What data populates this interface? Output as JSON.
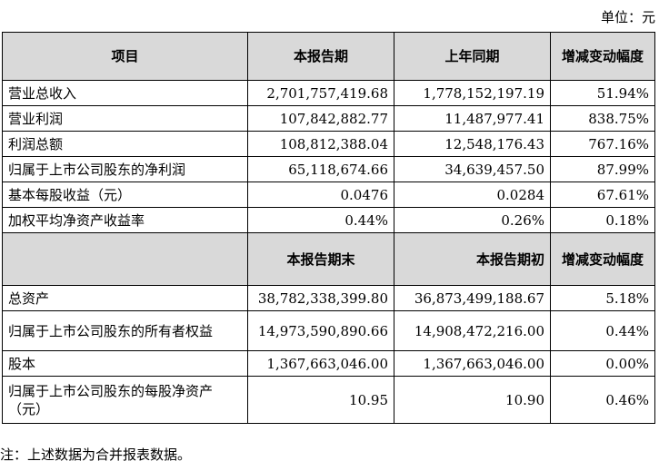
{
  "unit_label": "单位：元",
  "header1": {
    "item": "项目",
    "current": "本报告期",
    "prior": "上年同期",
    "change": "增减变动幅度"
  },
  "rows1": [
    {
      "label": "营业总收入",
      "current": "2,701,757,419.68",
      "prior": "1,778,152,197.19",
      "change": "51.94%"
    },
    {
      "label": "营业利润",
      "current": "107,842,882.77",
      "prior": "11,487,977.41",
      "change": "838.75%"
    },
    {
      "label": "利润总额",
      "current": "108,812,388.04",
      "prior": "12,548,176.43",
      "change": "767.16%"
    },
    {
      "label": "归属于上市公司股东的净利润",
      "current": "65,118,674.66",
      "prior": "34,639,457.50",
      "change": "87.99%"
    },
    {
      "label": "基本每股收益（元）",
      "current": "0.0476",
      "prior": "0.0284",
      "change": "67.61%"
    },
    {
      "label": "加权平均净资产收益率",
      "current": "0.44%",
      "prior": "0.26%",
      "change": "0.18%"
    }
  ],
  "header2": {
    "current": "本报告期末",
    "prior": "本报告期初",
    "change": "增减变动幅度"
  },
  "rows2": [
    {
      "label": "总资产",
      "current": "38,782,338,399.80",
      "prior": "36,873,499,188.67",
      "change": "5.18%"
    },
    {
      "label": "归属于上市公司股东的所有者权益",
      "current": "14,973,590,890.66",
      "prior": "14,908,472,216.00",
      "change": "0.44%"
    },
    {
      "label": "股本",
      "current": "1,367,663,046.00",
      "prior": "1,367,663,046.00",
      "change": "0.00%"
    },
    {
      "label": "归属于上市公司股东的每股净资产（元）",
      "current": "10.95",
      "prior": "10.90",
      "change": "0.46%"
    }
  ],
  "note": "注：上述数据为合并报表数据。"
}
